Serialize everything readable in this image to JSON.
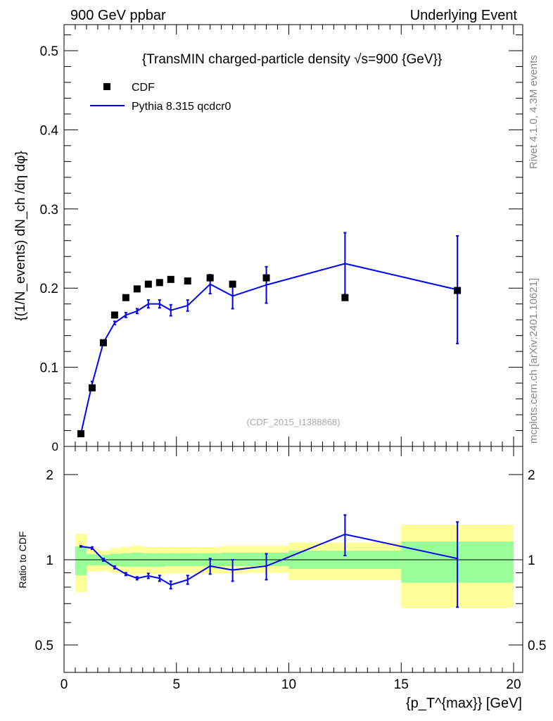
{
  "header": {
    "left": "900 GeV ppbar",
    "right": "Underlying Event"
  },
  "side": {
    "rivet": "Rivet 4.1.0,  4.3M events",
    "mcplots": "mcplots.cern.ch [arXiv:2401.10621]"
  },
  "colors": {
    "data": "#000000",
    "mc": "#0000ff",
    "band_yellow": "#ffff99",
    "band_green": "#99ff99"
  },
  "chart_data": [
    {
      "type": "scatter",
      "title": "{TransMIN charged-particle density √s=900 {GeV}}",
      "ylabel": "{(1/N_events) dN_ch /dη dφ}",
      "watermark": "(CDF_2015_I1388868)",
      "xlim": [
        0,
        20
      ],
      "ylim": [
        0,
        0.53
      ],
      "yticks": [
        "0.1",
        "0.2",
        "0.3",
        "0.4",
        "0.5"
      ],
      "ytick_zero": "0",
      "legend": {
        "position": "top-left",
        "entries": [
          "CDF",
          "Pythia 8.315 qcdcr0"
        ]
      },
      "x": [
        0.75,
        1.25,
        1.75,
        2.25,
        2.75,
        3.25,
        3.75,
        4.25,
        4.75,
        5.5,
        6.5,
        7.5,
        9,
        12.5,
        17.5
      ],
      "series": [
        {
          "name": "CDF",
          "values": [
            0.016,
            0.074,
            0.131,
            0.166,
            0.188,
            0.199,
            0.205,
            0.207,
            0.211,
            0.209,
            0.213,
            0.205,
            0.213,
            0.188,
            0.197
          ]
        },
        {
          "name": "Pythia 8.315 qcdcr0",
          "values": [
            0.016,
            0.079,
            0.131,
            0.156,
            0.166,
            0.171,
            0.18,
            0.18,
            0.172,
            0.178,
            0.205,
            0.19,
            0.204,
            0.231,
            0.198
          ],
          "errors": [
            0.002,
            0.003,
            0.002,
            0.002,
            0.003,
            0.003,
            0.005,
            0.005,
            0.007,
            0.007,
            0.012,
            0.016,
            0.023,
            0.039,
            0.068
          ]
        }
      ]
    },
    {
      "type": "line",
      "ylabel": "Ratio to CDF",
      "xlabel": "{p_T^{max}} [GeV]",
      "xlim": [
        0,
        20
      ],
      "ylim": [
        0.4,
        2.5
      ],
      "yscale": "log",
      "xticks": [
        "0",
        "5",
        "10",
        "15",
        "20"
      ],
      "yticks": [
        "0.5",
        "1",
        "2"
      ],
      "bins": [
        [
          0.5,
          1
        ],
        [
          1,
          1.5
        ],
        [
          1.5,
          2
        ],
        [
          2,
          2.5
        ],
        [
          2.5,
          3
        ],
        [
          3,
          3.5
        ],
        [
          3.5,
          4
        ],
        [
          4,
          4.5
        ],
        [
          4.5,
          5
        ],
        [
          5,
          6
        ],
        [
          6,
          7
        ],
        [
          7,
          8
        ],
        [
          8,
          10
        ],
        [
          10,
          15
        ],
        [
          15,
          20
        ]
      ],
      "yellow_band": [
        [
          0.768,
          1.236
        ],
        [
          0.907,
          1.096
        ],
        [
          0.912,
          1.077
        ],
        [
          0.9,
          1.1
        ],
        [
          0.89,
          1.11
        ],
        [
          0.89,
          1.12
        ],
        [
          0.89,
          1.11
        ],
        [
          0.89,
          1.11
        ],
        [
          0.895,
          1.11
        ],
        [
          0.895,
          1.11
        ],
        [
          0.895,
          1.11
        ],
        [
          0.895,
          1.12
        ],
        [
          0.9,
          1.12
        ],
        [
          0.847,
          1.15
        ],
        [
          0.677,
          1.33
        ]
      ],
      "green_band": [
        [
          0.882,
          1.115
        ],
        [
          0.955,
          1.047
        ],
        [
          0.955,
          1.04
        ],
        [
          0.95,
          1.05
        ],
        [
          0.945,
          1.055
        ],
        [
          0.945,
          1.06
        ],
        [
          0.945,
          1.055
        ],
        [
          0.945,
          1.055
        ],
        [
          0.95,
          1.055
        ],
        [
          0.95,
          1.055
        ],
        [
          0.95,
          1.055
        ],
        [
          0.95,
          1.06
        ],
        [
          0.95,
          1.06
        ],
        [
          0.928,
          1.077
        ],
        [
          0.83,
          1.16
        ]
      ],
      "x": [
        0.75,
        1.25,
        1.75,
        2.25,
        2.75,
        3.25,
        3.75,
        4.25,
        4.75,
        5.5,
        6.5,
        7.5,
        9,
        12.5,
        17.5
      ],
      "values": [
        1.115,
        1.1,
        1.0,
        0.94,
        0.89,
        0.86,
        0.877,
        0.86,
        0.815,
        0.85,
        0.95,
        0.92,
        0.95,
        1.23,
        1.01
      ],
      "err_lo": [
        1.11,
        1.09,
        0.99,
        0.93,
        0.88,
        0.85,
        0.86,
        0.84,
        0.79,
        0.82,
        0.89,
        0.84,
        0.85,
        1.035,
        0.68
      ],
      "err_hi": [
        1.12,
        1.11,
        1.01,
        0.95,
        0.9,
        0.87,
        0.895,
        0.88,
        0.84,
        0.88,
        1.01,
        1.0,
        1.05,
        1.44,
        1.36
      ]
    }
  ]
}
